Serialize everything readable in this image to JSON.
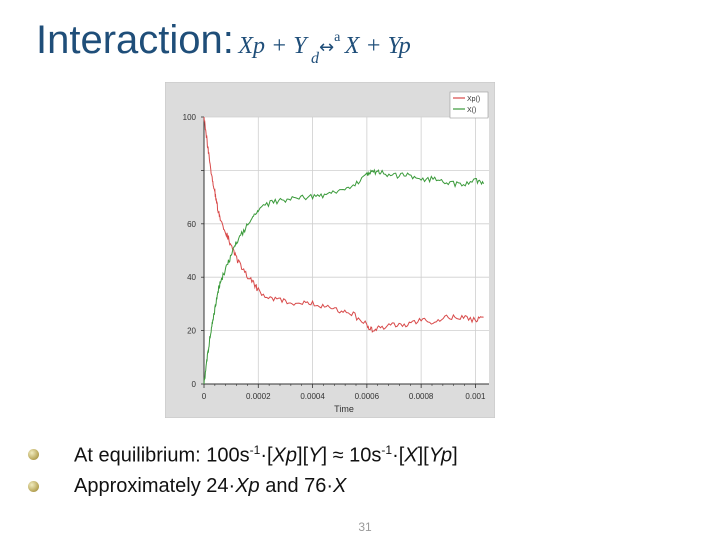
{
  "title": {
    "word": "Interaction:",
    "left_side": "Xp + Y",
    "sub_d": "d",
    "arrow": "↔",
    "sup_a": "a",
    "right_side": "X + Yp"
  },
  "chart_data": {
    "type": "line",
    "xlabel": "Time",
    "ylabel": "",
    "xlim": [
      0,
      0.00105
    ],
    "ylim": [
      0,
      100
    ],
    "x_ticks": [
      "0",
      "0.0002",
      "0.0004",
      "0.0006",
      "0.0008",
      "0.001"
    ],
    "y_ticks": [
      "0",
      "20",
      "40",
      "60",
      "",
      "100"
    ],
    "legend_position": "top-right",
    "grid": true,
    "series": [
      {
        "name": "Xp()",
        "color": "#d84a4a",
        "x": [
          0,
          1e-05,
          2e-05,
          3e-05,
          4e-05,
          5e-05,
          6e-05,
          8e-05,
          0.0001,
          0.00012,
          0.00015,
          0.00018,
          0.0002,
          0.00025,
          0.0003,
          0.00035,
          0.0004,
          0.00045,
          0.0005,
          0.00055,
          0.0006,
          0.00062,
          0.00065,
          0.0007,
          0.00075,
          0.0008,
          0.00085,
          0.0009,
          0.00095,
          0.001,
          0.00103
        ],
        "values": [
          100,
          92,
          84,
          77,
          72,
          66,
          62,
          57,
          52,
          47,
          42,
          38,
          35,
          32,
          31,
          30,
          30,
          29,
          27,
          26,
          22,
          20,
          21,
          22,
          22,
          24,
          23,
          25,
          25,
          24,
          25
        ]
      },
      {
        "name": "X()",
        "color": "#3a9a3a",
        "x": [
          0,
          1e-05,
          2e-05,
          3e-05,
          4e-05,
          5e-05,
          6e-05,
          8e-05,
          0.0001,
          0.00012,
          0.00015,
          0.00018,
          0.0002,
          0.00025,
          0.0003,
          0.00035,
          0.0004,
          0.00045,
          0.0005,
          0.00055,
          0.0006,
          0.00062,
          0.00065,
          0.0007,
          0.00075,
          0.0008,
          0.00085,
          0.0009,
          0.00095,
          0.001,
          0.00103
        ],
        "values": [
          0,
          8,
          16,
          23,
          28,
          34,
          38,
          43,
          48,
          53,
          58,
          62,
          65,
          68,
          69,
          70,
          70,
          71,
          73,
          74,
          78,
          80,
          79,
          78,
          78,
          76,
          77,
          75,
          75,
          76,
          75
        ]
      }
    ]
  },
  "bullets": [
    {
      "type": "equilibrium",
      "prefix": "At equilibrium: 100s",
      "exp1": "-1",
      "mid1": "·[",
      "xp": "Xp",
      "mid2": "][",
      "y": "Y",
      "mid3": "] ≈ 10s",
      "exp2": "-1",
      "mid4": "·[",
      "x": "X",
      "mid5": "][",
      "yp": "Yp",
      "suffix": "]"
    },
    {
      "type": "approx",
      "prefix": "Approximately 24·",
      "xp": "Xp",
      "mid": " and 76·",
      "x": "X"
    }
  ],
  "page_number": "31"
}
